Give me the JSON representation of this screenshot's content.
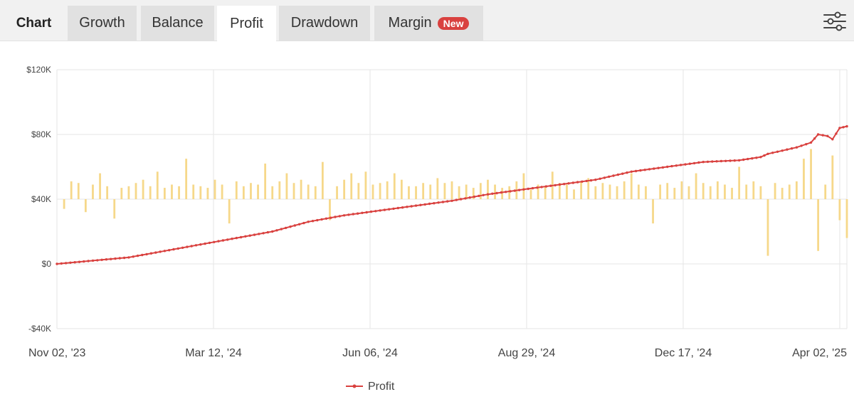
{
  "tabs": {
    "title": "Chart",
    "items": [
      {
        "label": "Growth"
      },
      {
        "label": "Balance"
      },
      {
        "label": "Profit",
        "active": true
      },
      {
        "label": "Drawdown"
      },
      {
        "label": "Margin",
        "badge": "New"
      }
    ],
    "settings_icon": "sliders-icon"
  },
  "colors": {
    "profit_line": "#d9413f",
    "bars": "#f6d88a",
    "grid": "#e6e6e6"
  },
  "chart_data": {
    "type": "line",
    "title": "",
    "xlabel": "",
    "ylabel": "",
    "ylim": [
      -40000,
      120000
    ],
    "yticks": [
      -40000,
      0,
      40000,
      80000,
      120000
    ],
    "ytick_labels": [
      "-$40K",
      "$0",
      "$40K",
      "$80K",
      "$120K"
    ],
    "xtick_labels": [
      "Nov 02, '23",
      "Mar 12, '24",
      "Jun 06, '24",
      "Aug 29, '24",
      "Dec 17, '24",
      "Apr 02, '25"
    ],
    "grid": true,
    "legend": "bottom-center",
    "series": [
      {
        "name": "Profit",
        "type": "line",
        "x": [
          0,
          50,
          100,
          150,
          200,
          250,
          300,
          350,
          400,
          450,
          500,
          550,
          600,
          650,
          700,
          750,
          800,
          850,
          900,
          950,
          980,
          990,
          1010,
          1030,
          1050,
          1060,
          1073,
          1080,
          1090,
          1100
        ],
        "values": [
          0,
          2000,
          4000,
          8000,
          12000,
          16000,
          20000,
          26000,
          30000,
          33000,
          36000,
          39000,
          43000,
          46000,
          49000,
          52000,
          57000,
          60000,
          63000,
          64000,
          66000,
          68000,
          70000,
          72000,
          75000,
          80000,
          79000,
          77000,
          84000,
          85000
        ]
      },
      {
        "name": "",
        "type": "bar",
        "x": [
          10,
          20,
          30,
          40,
          50,
          60,
          70,
          80,
          90,
          100,
          110,
          120,
          130,
          140,
          150,
          160,
          170,
          180,
          190,
          200,
          210,
          220,
          230,
          240,
          250,
          260,
          270,
          280,
          290,
          300,
          310,
          320,
          330,
          340,
          350,
          360,
          370,
          380,
          390,
          400,
          410,
          420,
          430,
          440,
          450,
          460,
          470,
          480,
          490,
          500,
          510,
          520,
          530,
          540,
          550,
          560,
          570,
          580,
          590,
          600,
          610,
          620,
          630,
          640,
          650,
          660,
          670,
          680,
          690,
          700,
          710,
          720,
          730,
          740,
          750,
          760,
          770,
          780,
          790,
          800,
          810,
          820,
          830,
          840,
          850,
          860,
          870,
          880,
          890,
          900,
          910,
          920,
          930,
          940,
          950,
          960,
          970,
          980,
          990,
          1000,
          1010,
          1020,
          1030,
          1040,
          1050,
          1060,
          1070,
          1080,
          1090,
          1100
        ],
        "values": [
          -6000,
          11000,
          10000,
          -8000,
          9000,
          16000,
          8000,
          -12000,
          7000,
          8000,
          10000,
          12000,
          8000,
          17000,
          7000,
          9000,
          8000,
          25000,
          9000,
          8000,
          7000,
          12000,
          9000,
          -15000,
          11000,
          8000,
          10000,
          9000,
          22000,
          8000,
          11000,
          16000,
          10000,
          12000,
          9000,
          8000,
          23000,
          -13000,
          8000,
          12000,
          16000,
          10000,
          17000,
          9000,
          10000,
          11000,
          16000,
          12000,
          8000,
          8000,
          10000,
          9000,
          13000,
          10000,
          11000,
          8000,
          9000,
          7000,
          10000,
          12000,
          9000,
          7000,
          8000,
          11000,
          16000,
          6000,
          9000,
          8000,
          17000,
          10000,
          9000,
          6000,
          11000,
          13000,
          8000,
          10000,
          9000,
          8000,
          11000,
          16000,
          9000,
          8000,
          -15000,
          9000,
          10000,
          7000,
          11000,
          8000,
          16000,
          10000,
          8000,
          11000,
          9000,
          7000,
          20000,
          9000,
          11000,
          8000,
          -35000,
          10000,
          7000,
          9000,
          11000,
          25000,
          31000,
          -32000,
          9000,
          27000,
          -13000,
          -24000
        ]
      }
    ]
  }
}
